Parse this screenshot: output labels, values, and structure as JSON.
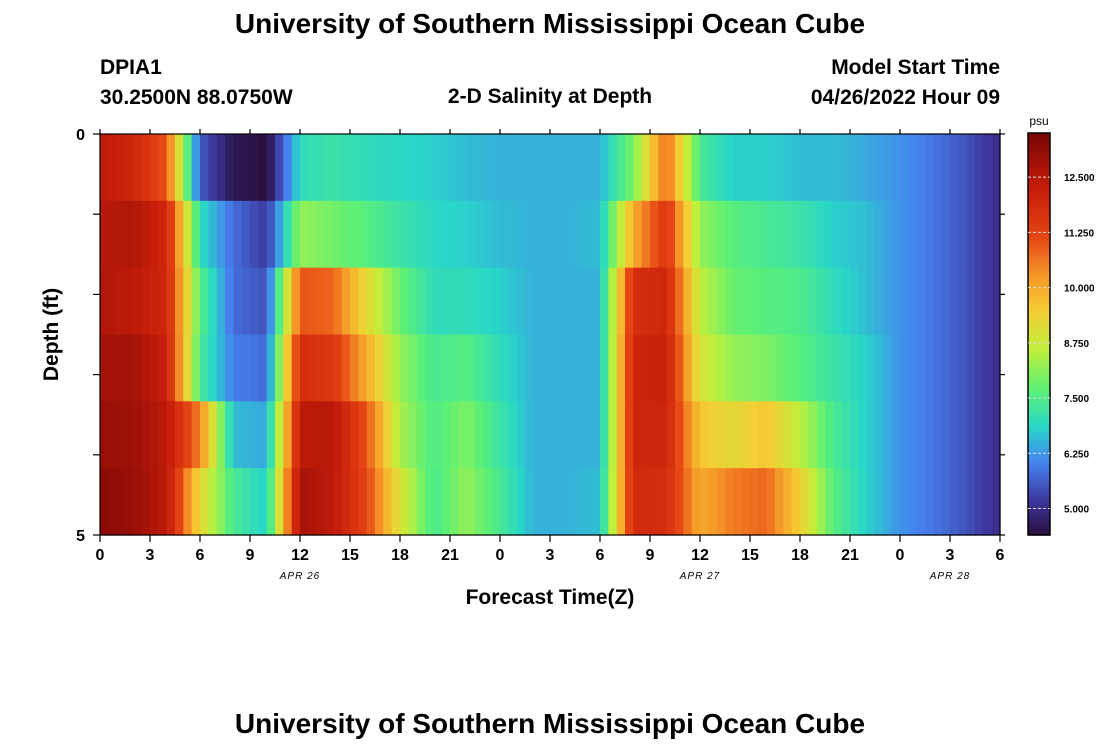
{
  "page": {
    "title_top": "University of Southern Mississippi Ocean Cube",
    "title_bottom": "University of Southern Mississippi Ocean Cube",
    "station_name": "DPIA1",
    "station_coords": "30.2500N  88.0750W",
    "plot_title": "2-D Salinity at Depth",
    "model_start_label": "Model Start Time",
    "model_start_value": "04/26/2022 Hour 09"
  },
  "chart_data": {
    "type": "heatmap",
    "title": "2-D Salinity at Depth",
    "xlabel": "Forecast Time(Z)",
    "ylabel": "Depth (ft)",
    "units": "psu",
    "x_hours": [
      0,
      54
    ],
    "x_tick_labels": [
      "0",
      "3",
      "6",
      "9",
      "12",
      "15",
      "18",
      "21",
      "0",
      "3",
      "6",
      "9",
      "12",
      "15",
      "18",
      "21",
      "0",
      "3",
      "6"
    ],
    "date_labels": [
      {
        "label": "APR 26",
        "hour": 12
      },
      {
        "label": "APR 27",
        "hour": 36
      },
      {
        "label": "APR 28",
        "hour": 51
      }
    ],
    "y_tick_labels": [
      "0",
      "5"
    ],
    "ylim": [
      0,
      5
    ],
    "depth_levels": [
      0,
      1,
      2,
      3,
      4,
      5
    ],
    "colorbar": {
      "range": [
        4.4,
        13.5
      ],
      "tick_values": [
        5.0,
        6.25,
        7.5,
        8.75,
        10.0,
        11.25,
        12.5
      ],
      "tick_labels": [
        "5.000",
        "6.250",
        "7.500",
        "8.750",
        "10.000",
        "11.250",
        "12.500"
      ]
    },
    "profile_keys": [
      0,
      2,
      4,
      6,
      8,
      10,
      12,
      14,
      16,
      18,
      20,
      22,
      24,
      26,
      28,
      30,
      32,
      34,
      36,
      38,
      40,
      42,
      44,
      46,
      48,
      50,
      52,
      54
    ],
    "salinity": [
      [
        12.4,
        12.5,
        12.6,
        12.8,
        13.0,
        13.2
      ],
      [
        12.0,
        12.6,
        12.4,
        12.8,
        12.9,
        13.0
      ],
      [
        11.0,
        12.0,
        12.0,
        12.2,
        12.4,
        12.4
      ],
      [
        5.6,
        7.0,
        7.6,
        7.4,
        10.5,
        9.2
      ],
      [
        4.6,
        5.8,
        5.8,
        6.0,
        6.6,
        7.4
      ],
      [
        4.4,
        5.2,
        5.5,
        5.8,
        6.4,
        6.8
      ],
      [
        7.0,
        8.2,
        11.0,
        11.8,
        12.4,
        12.8
      ],
      [
        7.2,
        7.9,
        10.8,
        11.5,
        12.5,
        12.4
      ],
      [
        7.0,
        7.6,
        9.2,
        10.0,
        11.0,
        11.2
      ],
      [
        6.9,
        7.2,
        7.8,
        8.2,
        8.4,
        9.0
      ],
      [
        6.8,
        6.9,
        7.0,
        7.4,
        7.5,
        7.4
      ],
      [
        6.6,
        6.8,
        7.0,
        7.6,
        8.0,
        8.2
      ],
      [
        6.5,
        6.6,
        6.8,
        7.0,
        7.2,
        7.4
      ],
      [
        6.5,
        6.5,
        6.5,
        6.5,
        6.5,
        6.5
      ],
      [
        6.5,
        6.5,
        6.5,
        6.5,
        6.5,
        6.5
      ],
      [
        6.5,
        6.6,
        6.5,
        6.5,
        6.5,
        6.6
      ],
      [
        8.0,
        10.0,
        11.8,
        12.0,
        12.0,
        11.9
      ],
      [
        10.8,
        11.6,
        12.0,
        12.2,
        12.0,
        11.8
      ],
      [
        7.4,
        8.2,
        8.6,
        8.9,
        9.6,
        10.0
      ],
      [
        6.8,
        7.6,
        7.8,
        8.2,
        9.2,
        10.6
      ],
      [
        6.8,
        7.4,
        7.6,
        8.0,
        9.6,
        10.8
      ],
      [
        6.6,
        7.2,
        7.5,
        7.6,
        8.6,
        9.4
      ],
      [
        6.6,
        6.8,
        7.0,
        7.2,
        7.4,
        7.6
      ],
      [
        6.4,
        6.6,
        6.6,
        6.8,
        6.8,
        6.8
      ],
      [
        6.2,
        6.2,
        6.2,
        6.2,
        6.2,
        6.2
      ],
      [
        5.9,
        5.9,
        5.9,
        5.9,
        5.9,
        5.9
      ],
      [
        5.5,
        5.5,
        5.5,
        5.5,
        5.5,
        5.5
      ],
      [
        5.0,
        5.0,
        5.0,
        5.0,
        5.0,
        5.0
      ]
    ]
  }
}
